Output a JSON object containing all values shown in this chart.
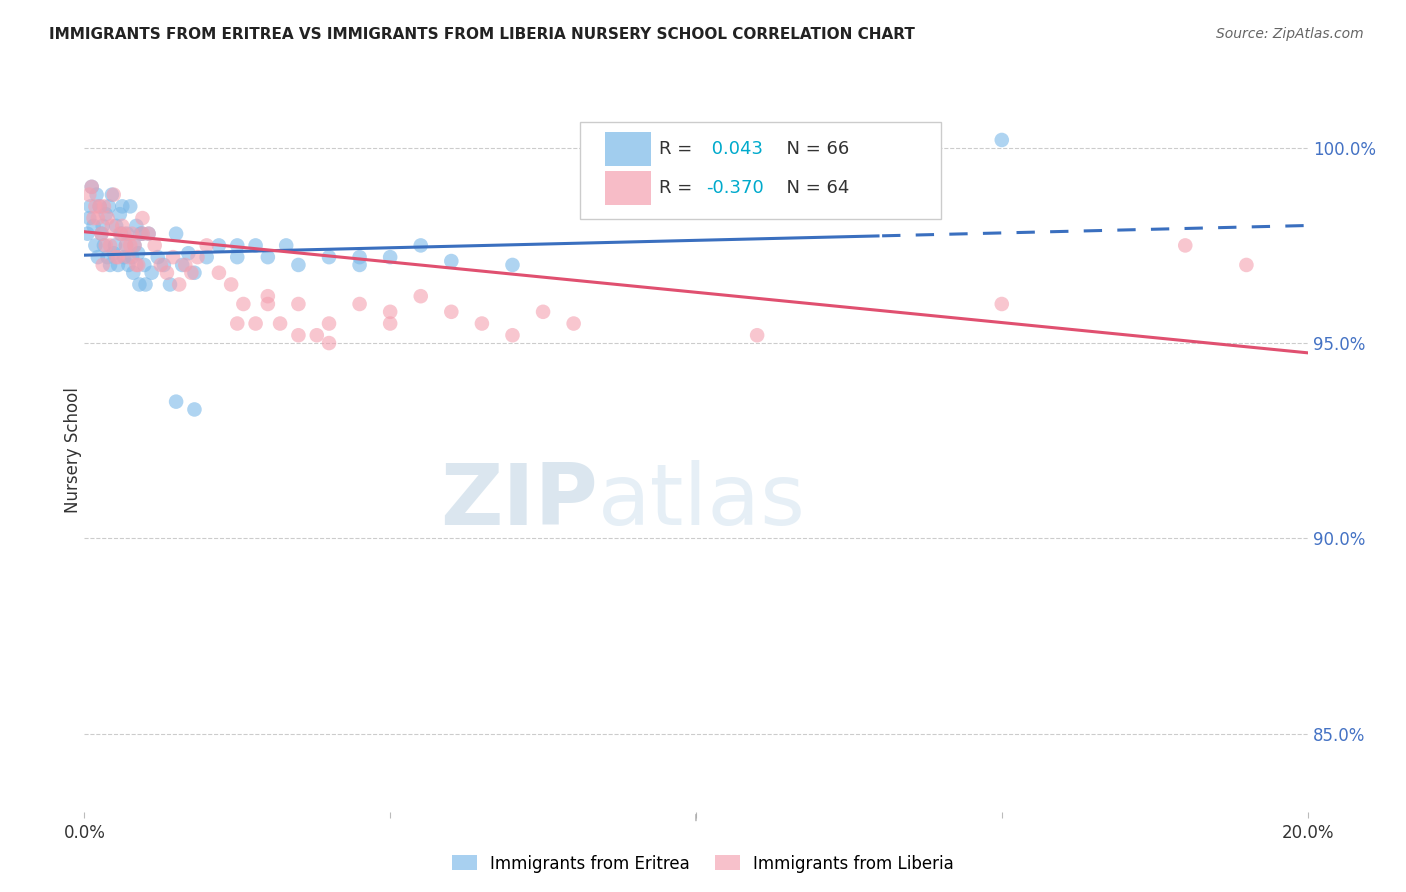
{
  "title": "IMMIGRANTS FROM ERITREA VS IMMIGRANTS FROM LIBERIA NURSERY SCHOOL CORRELATION CHART",
  "source": "Source: ZipAtlas.com",
  "ylabel": "Nursery School",
  "xlim": [
    0.0,
    20.0
  ],
  "ylim": [
    83.0,
    101.5
  ],
  "ytick_vals": [
    85.0,
    90.0,
    95.0,
    100.0
  ],
  "eritrea_R": 0.043,
  "eritrea_N": 66,
  "liberia_R": -0.37,
  "liberia_N": 64,
  "eritrea_color": "#7ab8e8",
  "liberia_color": "#f4a0b0",
  "eritrea_line_color": "#3a6fbf",
  "liberia_line_color": "#e05070",
  "watermark_color": "#d0e4f0",
  "eritrea_x": [
    0.05,
    0.08,
    0.1,
    0.12,
    0.15,
    0.18,
    0.2,
    0.22,
    0.25,
    0.28,
    0.3,
    0.32,
    0.35,
    0.38,
    0.4,
    0.42,
    0.45,
    0.48,
    0.5,
    0.52,
    0.55,
    0.58,
    0.6,
    0.62,
    0.65,
    0.68,
    0.7,
    0.72,
    0.75,
    0.78,
    0.8,
    0.82,
    0.85,
    0.88,
    0.9,
    0.92,
    0.95,
    0.98,
    1.0,
    1.05,
    1.1,
    1.2,
    1.3,
    1.4,
    1.5,
    1.6,
    1.7,
    1.8,
    2.0,
    2.2,
    2.5,
    2.8,
    3.0,
    3.3,
    3.5,
    4.0,
    4.5,
    5.0,
    5.5,
    6.0,
    7.0,
    1.5,
    1.8,
    2.5,
    4.5,
    15.0
  ],
  "eritrea_y": [
    97.8,
    98.2,
    98.5,
    99.0,
    98.0,
    97.5,
    98.8,
    97.2,
    98.5,
    97.8,
    98.0,
    97.5,
    98.3,
    97.2,
    98.5,
    97.0,
    98.8,
    97.3,
    97.5,
    98.0,
    97.0,
    98.3,
    97.8,
    98.5,
    97.2,
    97.5,
    97.8,
    97.0,
    98.5,
    97.2,
    96.8,
    97.5,
    98.0,
    97.3,
    96.5,
    97.8,
    97.8,
    97.0,
    96.5,
    97.8,
    96.8,
    97.2,
    97.0,
    96.5,
    97.8,
    97.0,
    97.3,
    96.8,
    97.2,
    97.5,
    97.2,
    97.5,
    97.2,
    97.5,
    97.0,
    97.2,
    97.0,
    97.2,
    97.5,
    97.1,
    97.0,
    93.5,
    93.3,
    97.5,
    97.2,
    100.2
  ],
  "liberia_x": [
    0.08,
    0.12,
    0.18,
    0.22,
    0.28,
    0.32,
    0.38,
    0.42,
    0.48,
    0.52,
    0.58,
    0.62,
    0.68,
    0.72,
    0.78,
    0.82,
    0.88,
    0.95,
    1.05,
    1.15,
    1.25,
    1.35,
    1.45,
    1.55,
    1.65,
    1.75,
    1.85,
    2.0,
    2.2,
    2.4,
    2.6,
    2.8,
    3.0,
    3.2,
    3.5,
    3.8,
    4.0,
    4.5,
    5.0,
    5.5,
    6.0,
    6.5,
    7.0,
    7.5,
    8.0,
    0.15,
    0.25,
    0.35,
    0.45,
    0.55,
    0.65,
    0.75,
    0.85,
    0.95,
    2.5,
    3.0,
    3.5,
    4.0,
    5.0,
    11.0,
    15.0,
    18.0,
    19.0,
    0.3
  ],
  "liberia_y": [
    98.8,
    99.0,
    98.5,
    98.2,
    97.8,
    98.5,
    98.2,
    97.5,
    98.8,
    97.2,
    97.8,
    98.0,
    97.5,
    97.2,
    97.8,
    97.5,
    97.0,
    98.2,
    97.8,
    97.5,
    97.0,
    96.8,
    97.2,
    96.5,
    97.0,
    96.8,
    97.2,
    97.5,
    96.8,
    96.5,
    96.0,
    95.5,
    96.2,
    95.5,
    96.0,
    95.2,
    95.0,
    96.0,
    95.5,
    96.2,
    95.8,
    95.5,
    95.2,
    95.8,
    95.5,
    98.2,
    98.5,
    97.5,
    98.0,
    97.2,
    97.8,
    97.5,
    97.0,
    97.8,
    95.5,
    96.0,
    95.2,
    95.5,
    95.8,
    95.2,
    96.0,
    97.5,
    97.0,
    97.0
  ],
  "eritrea_line_start_x": 0.0,
  "eritrea_line_end_x": 20.0,
  "eritrea_dash_start_x": 13.0,
  "liberia_line_start_x": 0.0,
  "liberia_line_end_x": 20.0
}
